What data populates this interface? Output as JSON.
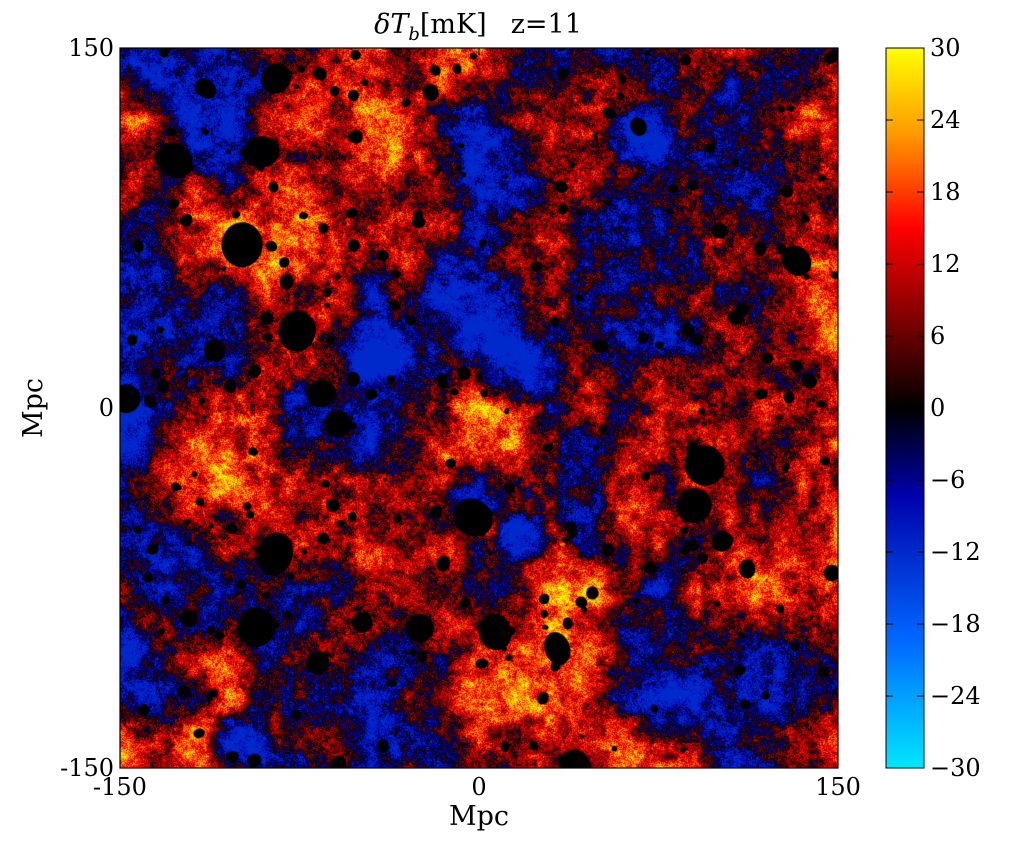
{
  "chart_data": {
    "type": "heatmap",
    "title": {
      "symbol": "δT",
      "subscript": "b",
      "unit": "[mK]",
      "redshift": "z=11"
    },
    "xlabel": "Mpc",
    "ylabel": "Mpc",
    "xlim": [
      -150,
      150
    ],
    "ylim": [
      -150,
      150
    ],
    "x_ticks": [
      -150,
      0,
      150
    ],
    "y_ticks": [
      -150,
      0,
      150
    ],
    "x_tick_labels": [
      "-150",
      "0",
      "150"
    ],
    "y_tick_labels": [
      "-150",
      "0",
      "150"
    ],
    "colorbar": {
      "range": [
        -30,
        30
      ],
      "ticks": [
        30,
        24,
        18,
        12,
        6,
        0,
        -6,
        -12,
        -18,
        -24,
        -30
      ],
      "tick_labels": [
        "30",
        "24",
        "18",
        "12",
        "6",
        "0",
        "−6",
        "−12",
        "−18",
        "−24",
        "−30"
      ],
      "colormap": [
        "#00e6ff",
        "#0066ff",
        "#0000aa",
        "#000000",
        "#7a0000",
        "#ff0000",
        "#ff9900",
        "#ffff00"
      ]
    },
    "field_description_values": {
      "dominant_range": [
        6,
        30
      ],
      "ionized_bubble_value": 0,
      "cold_region_range": [
        -10,
        -1
      ]
    }
  }
}
